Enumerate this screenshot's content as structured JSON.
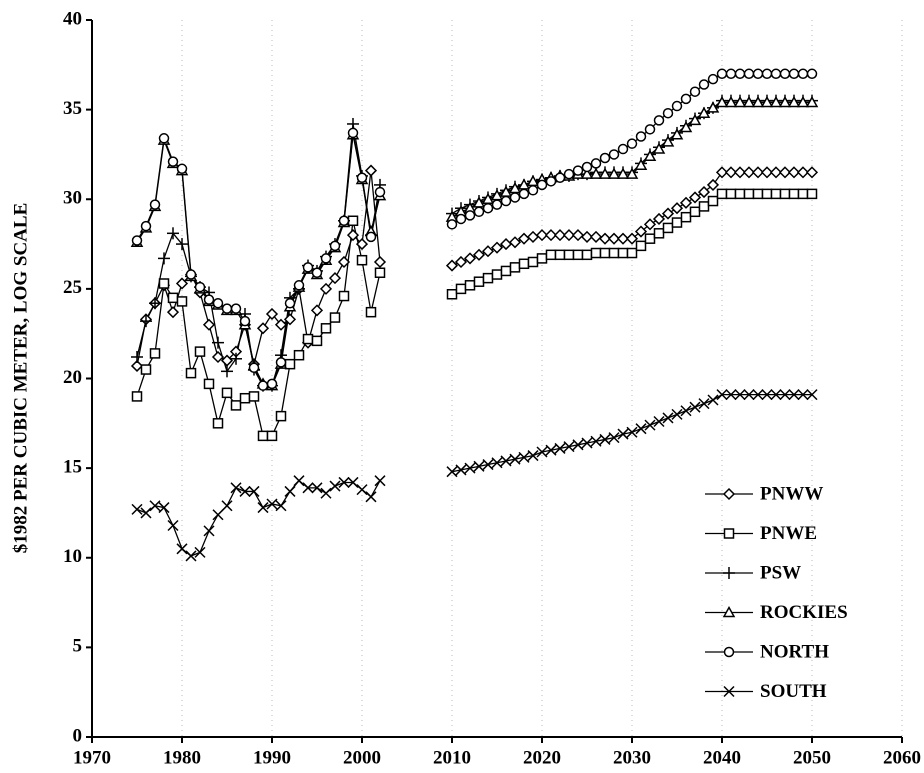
{
  "chart_data": {
    "type": "line",
    "y_label": "$1982 PER CUBIC METER, LOG SCALE",
    "x": [
      1975,
      1976,
      1977,
      1978,
      1979,
      1980,
      1981,
      1982,
      1983,
      1984,
      1985,
      1986,
      1987,
      1988,
      1989,
      1990,
      1991,
      1992,
      1993,
      1994,
      1995,
      1996,
      1997,
      1998,
      1999,
      2000,
      2001,
      2002,
      2003,
      2004,
      2005,
      2006,
      2007,
      2008,
      2009,
      2010,
      2011,
      2012,
      2013,
      2014,
      2015,
      2016,
      2017,
      2018,
      2019,
      2020,
      2021,
      2022,
      2023,
      2024,
      2025,
      2026,
      2027,
      2028,
      2029,
      2030,
      2031,
      2032,
      2033,
      2034,
      2035,
      2036,
      2037,
      2038,
      2039,
      2040,
      2041,
      2042,
      2043,
      2044,
      2045,
      2046,
      2047,
      2048,
      2049,
      2050
    ],
    "series": [
      {
        "name": "PNWW",
        "marker": "diamond",
        "color": "#000000",
        "values": [
          20.7,
          23.3,
          24.2,
          25.2,
          23.7,
          25.3,
          25.8,
          24.8,
          23.0,
          21.2,
          21.0,
          21.5,
          23.0,
          20.8,
          22.8,
          23.6,
          23.0,
          23.3,
          25.0,
          22.0,
          23.8,
          25.0,
          25.6,
          26.5,
          28.0,
          27.5,
          31.6,
          26.5,
          null,
          null,
          null,
          null,
          null,
          null,
          null,
          26.3,
          26.5,
          26.7,
          26.9,
          27.1,
          27.3,
          27.5,
          27.6,
          27.8,
          27.9,
          28.0,
          28.0,
          28.0,
          28.0,
          28.0,
          27.9,
          27.9,
          27.8,
          27.8,
          27.8,
          27.8,
          28.2,
          28.6,
          28.9,
          29.2,
          29.5,
          29.8,
          30.1,
          30.4,
          30.8,
          31.5,
          31.5,
          31.5,
          31.5,
          31.5,
          31.5,
          31.5,
          31.5,
          31.5,
          31.5,
          31.5
        ]
      },
      {
        "name": "PNWE",
        "marker": "square",
        "color": "#000000",
        "values": [
          19.0,
          20.5,
          21.4,
          25.3,
          24.5,
          24.3,
          20.3,
          21.5,
          19.7,
          17.5,
          19.2,
          18.5,
          18.9,
          19.0,
          16.8,
          16.8,
          17.9,
          20.8,
          21.3,
          22.2,
          22.1,
          22.8,
          23.4,
          24.6,
          28.8,
          26.6,
          23.7,
          25.9,
          null,
          null,
          null,
          null,
          null,
          null,
          null,
          24.7,
          25.0,
          25.2,
          25.4,
          25.6,
          25.8,
          26.0,
          26.2,
          26.4,
          26.5,
          26.7,
          26.9,
          26.9,
          26.9,
          26.9,
          26.9,
          27.0,
          27.0,
          27.0,
          27.0,
          27.0,
          27.4,
          27.8,
          28.1,
          28.4,
          28.7,
          29.0,
          29.3,
          29.6,
          29.9,
          30.3,
          30.3,
          30.3,
          30.3,
          30.3,
          30.3,
          30.3,
          30.3,
          30.3,
          30.3,
          30.3
        ]
      },
      {
        "name": "PSW",
        "marker": "plus",
        "color": "#000000",
        "values": [
          21.2,
          23.2,
          24.2,
          26.7,
          28.1,
          27.5,
          25.7,
          25.1,
          24.8,
          22.0,
          20.4,
          21.1,
          23.6,
          20.5,
          19.6,
          19.6,
          21.3,
          24.5,
          25.0,
          26.3,
          26.0,
          26.8,
          27.5,
          28.8,
          34.2,
          31.3,
          28.0,
          30.8,
          null,
          null,
          null,
          null,
          null,
          null,
          null,
          29.2,
          29.5,
          29.7,
          29.9,
          30.1,
          30.3,
          30.5,
          30.7,
          30.8,
          31.0,
          31.1,
          31.2,
          31.3,
          31.3,
          31.4,
          31.4,
          31.5,
          31.5,
          31.5,
          31.5,
          31.5,
          32.0,
          32.5,
          32.9,
          33.3,
          33.7,
          34.1,
          34.5,
          34.8,
          35.1,
          35.5,
          35.5,
          35.5,
          35.5,
          35.5,
          35.5,
          35.5,
          35.5,
          35.5,
          35.5,
          35.5
        ]
      },
      {
        "name": "ROCKIES",
        "marker": "triangle",
        "color": "#000000",
        "values": [
          27.6,
          28.4,
          29.6,
          33.3,
          32.0,
          31.6,
          25.7,
          25.0,
          24.3,
          24.1,
          23.8,
          23.8,
          23.0,
          20.7,
          19.7,
          19.6,
          20.8,
          24.0,
          25.1,
          26.1,
          25.8,
          26.6,
          27.3,
          28.7,
          33.6,
          31.1,
          28.2,
          30.2,
          null,
          null,
          null,
          null,
          null,
          null,
          null,
          29.0,
          29.3,
          29.5,
          29.8,
          30.0,
          30.2,
          30.4,
          30.6,
          30.8,
          31.0,
          31.1,
          31.2,
          31.3,
          31.3,
          31.4,
          31.4,
          31.4,
          31.4,
          31.4,
          31.4,
          31.4,
          31.9,
          32.4,
          32.8,
          33.2,
          33.6,
          34.0,
          34.4,
          34.8,
          35.1,
          35.4,
          35.4,
          35.4,
          35.4,
          35.4,
          35.4,
          35.4,
          35.4,
          35.4,
          35.4,
          35.4
        ]
      },
      {
        "name": "NORTH",
        "marker": "circle",
        "color": "#000000",
        "values": [
          27.7,
          28.5,
          29.7,
          33.4,
          32.1,
          31.7,
          25.8,
          25.1,
          24.4,
          24.2,
          23.9,
          23.9,
          23.2,
          20.6,
          19.6,
          19.7,
          20.9,
          24.2,
          25.2,
          26.2,
          25.9,
          26.7,
          27.4,
          28.8,
          33.7,
          31.2,
          27.9,
          30.4,
          null,
          null,
          null,
          null,
          null,
          null,
          null,
          28.6,
          28.9,
          29.1,
          29.3,
          29.5,
          29.7,
          29.9,
          30.1,
          30.3,
          30.5,
          30.8,
          31.0,
          31.2,
          31.4,
          31.6,
          31.8,
          32.0,
          32.3,
          32.5,
          32.8,
          33.1,
          33.5,
          33.9,
          34.4,
          34.8,
          35.2,
          35.6,
          36.0,
          36.4,
          36.7,
          37.0,
          37.0,
          37.0,
          37.0,
          37.0,
          37.0,
          37.0,
          37.0,
          37.0,
          37.0,
          37.0
        ]
      },
      {
        "name": "SOUTH",
        "marker": "x",
        "color": "#000000",
        "values": [
          12.7,
          12.5,
          12.9,
          12.8,
          11.8,
          10.5,
          10.1,
          10.3,
          11.5,
          12.4,
          12.9,
          13.9,
          13.7,
          13.7,
          12.8,
          13.0,
          12.9,
          13.7,
          14.3,
          13.9,
          13.9,
          13.6,
          14.0,
          14.2,
          14.2,
          13.8,
          13.4,
          14.3,
          null,
          null,
          null,
          null,
          null,
          null,
          null,
          14.8,
          14.9,
          15.0,
          15.1,
          15.2,
          15.3,
          15.4,
          15.5,
          15.6,
          15.7,
          15.9,
          16.0,
          16.1,
          16.2,
          16.3,
          16.4,
          16.5,
          16.6,
          16.7,
          16.9,
          17.0,
          17.2,
          17.4,
          17.6,
          17.8,
          18.0,
          18.2,
          18.4,
          18.6,
          18.8,
          19.1,
          19.1,
          19.1,
          19.1,
          19.1,
          19.1,
          19.1,
          19.1,
          19.1,
          19.1,
          19.1
        ]
      }
    ],
    "xlim": [
      1970,
      2060
    ],
    "xticks": [
      1970,
      1980,
      1990,
      2000,
      2010,
      2020,
      2030,
      2040,
      2050,
      2060
    ],
    "ylim": [
      0,
      40
    ],
    "yticks": [
      0,
      5,
      10,
      15,
      20,
      25,
      30,
      35,
      40
    ],
    "grid": "x",
    "legend": "lower right"
  }
}
